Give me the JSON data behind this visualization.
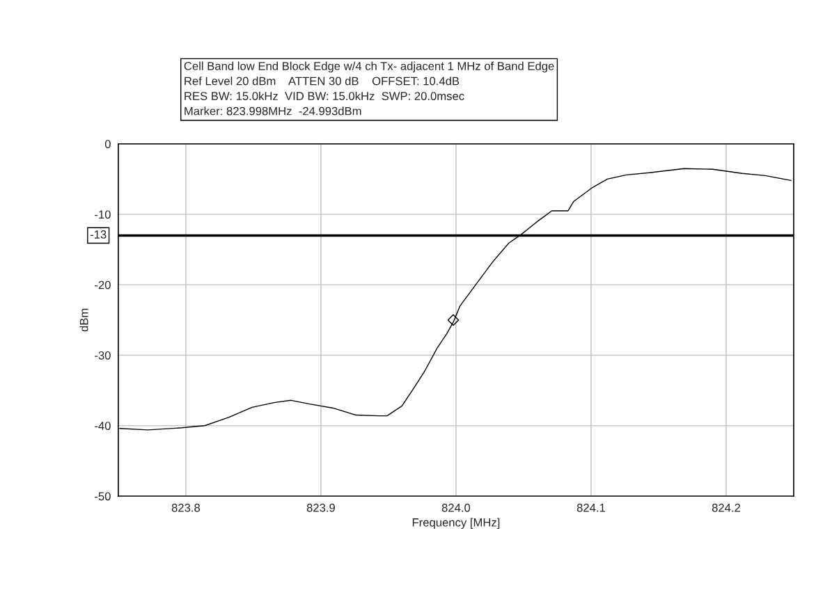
{
  "chart_data": {
    "type": "line",
    "title": "Cell Band low End Block Edge w/4 ch Tx- adjacent 1 MHz of Band Edge",
    "annotations": [
      "Ref Level 20 dBm    ATTEN 30 dB    OFFSET: 10.4dB",
      "RES BW: 15.0kHz  VID BW: 15.0kHz  SWP: 20.0msec",
      "Marker: 823.998MHz  -24.993dBm"
    ],
    "xlabel": "Frequency [MHz]",
    "ylabel": "dBm",
    "series": [
      {
        "color": "#000000",
        "x": [
          823.751,
          823.772,
          823.797,
          823.814,
          823.832,
          823.849,
          823.866,
          823.878,
          823.891,
          823.909,
          823.926,
          823.943,
          823.949,
          823.96,
          823.969,
          823.977,
          823.986,
          823.993,
          823.998,
          824.003,
          824.013,
          824.027,
          824.039,
          824.048,
          824.061,
          824.071,
          824.083,
          824.087,
          824.101,
          824.112,
          824.126,
          824.143,
          824.169,
          824.19,
          824.212,
          824.229,
          824.248
        ],
        "values": [
          -40.4,
          -40.6,
          -40.3,
          -40,
          -38.8,
          -37.4,
          -36.7,
          -36.4,
          -36.9,
          -37.5,
          -38.5,
          -38.6,
          -38.6,
          -37.2,
          -34.6,
          -32.2,
          -29,
          -27,
          -25.3,
          -23,
          -20.4,
          -16.8,
          -14.1,
          -12.9,
          -10.9,
          -9.5,
          -9.5,
          -8.2,
          -6.2,
          -5,
          -4.4,
          -4.1,
          -3.5,
          -3.6,
          -4.2,
          -4.5,
          -5.2
        ]
      },
      {
        "type": "scatter",
        "color": "#000000",
        "marker": "diamond",
        "x": [
          823.998
        ],
        "values": [
          -25
        ]
      }
    ],
    "xlim": [
      823.75,
      824.25
    ],
    "xticks": [
      {
        "value": 823.8,
        "label": "823.8"
      },
      {
        "value": 823.9,
        "label": "823.9"
      },
      {
        "value": 824.0,
        "label": "824.0"
      },
      {
        "value": 824.1,
        "label": "824.1"
      },
      {
        "value": 824.2,
        "label": "824.2"
      }
    ],
    "ylim": [
      -50,
      0
    ],
    "yticks": [
      0,
      -10,
      -20,
      -30,
      -40,
      -50
    ],
    "ref_lines": [
      {
        "axis": "y",
        "value": -13,
        "label": "-13",
        "color": "#000000"
      }
    ],
    "grid": true
  }
}
